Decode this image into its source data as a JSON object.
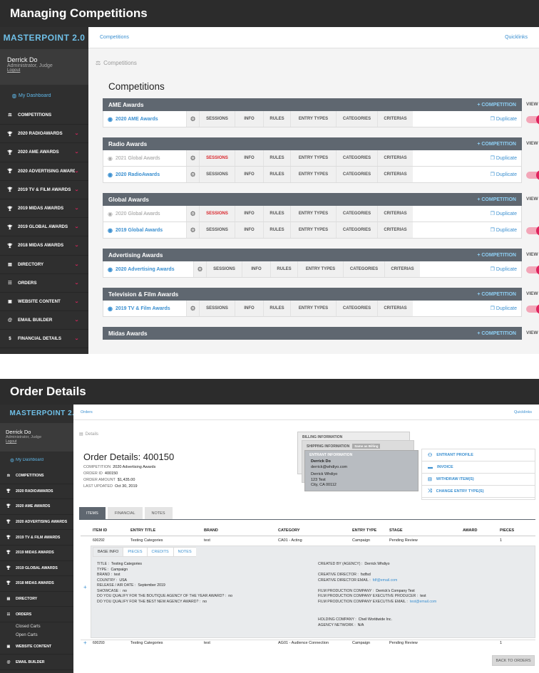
{
  "sections": {
    "competitions_title": "Managing Competitions",
    "order_title": "Order Details"
  },
  "app": {
    "logo": "MASTERPOINT 2.0",
    "user_name": "Derrick Do",
    "user_role": "Administrator, Judge",
    "logout": "Logout",
    "dashboard": "My Dashboard"
  },
  "sidebar1": [
    {
      "label": "Competitions",
      "icon": "scale-icon",
      "chev": false
    },
    {
      "label": "2020 RadioAwards",
      "icon": "trophy-icon",
      "chev": true
    },
    {
      "label": "2020 AME Awards",
      "icon": "trophy-icon",
      "chev": true
    },
    {
      "label": "2020 Advertising Awards",
      "icon": "trophy-icon",
      "chev": true
    },
    {
      "label": "2019 TV & Film Awards",
      "icon": "trophy-icon",
      "chev": true
    },
    {
      "label": "2019 Midas Awards",
      "icon": "trophy-icon",
      "chev": true
    },
    {
      "label": "2019 Global Awards",
      "icon": "trophy-icon",
      "chev": true
    },
    {
      "label": "2018 Midas Awards",
      "icon": "trophy-icon",
      "chev": true
    },
    {
      "label": "Directory",
      "icon": "id-card-icon",
      "chev": true
    },
    {
      "label": "Orders",
      "icon": "list-icon",
      "chev": true
    },
    {
      "label": "Website Content",
      "icon": "image-icon",
      "chev": true
    },
    {
      "label": "Email Builder",
      "icon": "at-icon",
      "chev": true
    },
    {
      "label": "Financial Details",
      "icon": "dollar-icon",
      "chev": true
    }
  ],
  "sidebar2": [
    {
      "label": "Competitions",
      "icon": "scale-icon",
      "chev": false
    },
    {
      "label": "2020 RadioAwards",
      "icon": "trophy-icon",
      "chev": true
    },
    {
      "label": "2020 AME Awards",
      "icon": "trophy-icon",
      "chev": true
    },
    {
      "label": "2020 Advertising Awards",
      "icon": "trophy-icon",
      "chev": true
    },
    {
      "label": "2019 TV & Film Awards",
      "icon": "trophy-icon",
      "chev": true
    },
    {
      "label": "2019 Midas Awards",
      "icon": "trophy-icon",
      "chev": true
    },
    {
      "label": "2019 Global Awards",
      "icon": "trophy-icon",
      "chev": true
    },
    {
      "label": "2018 Midas Awards",
      "icon": "trophy-icon",
      "chev": true
    },
    {
      "label": "Directory",
      "icon": "id-card-icon",
      "chev": true
    },
    {
      "label": "Orders",
      "icon": "list-icon",
      "chev": true
    },
    {
      "label": "Closed Carts",
      "sub": true
    },
    {
      "label": "Open Carts",
      "sub": true
    },
    {
      "label": "Website Content",
      "icon": "image-icon",
      "chev": true
    },
    {
      "label": "Email Builder",
      "icon": "at-icon",
      "chev": true
    }
  ],
  "competitions": {
    "top_link": "Competitions",
    "quicklinks": "Quicklinks",
    "crumb": "Competitions",
    "title": "Competitions",
    "add_label": "+ COMPETITION",
    "view_label": "VIEW",
    "duplicate": "Duplicate",
    "cols": [
      "Sessions",
      "Info",
      "Rules",
      "Entry Types",
      "Categories",
      "Criterias"
    ],
    "groups": [
      {
        "name": "AME Awards",
        "rows": [
          {
            "name": "2020 AME Awards",
            "active": true,
            "sessions_red": false,
            "toggle": true
          }
        ]
      },
      {
        "name": "Radio Awards",
        "rows": [
          {
            "name": "2021 Global Awards",
            "active": false,
            "sessions_red": true,
            "toggle": false
          },
          {
            "name": "2020 RadioAwards",
            "active": true,
            "sessions_red": false,
            "toggle": true
          }
        ]
      },
      {
        "name": "Global Awards",
        "rows": [
          {
            "name": "2020 Global Awards",
            "active": false,
            "sessions_red": true,
            "toggle": false
          },
          {
            "name": "2019 Global Awards",
            "active": true,
            "sessions_red": false,
            "toggle": true
          }
        ]
      },
      {
        "name": "Advertising Awards",
        "rows": [
          {
            "name": "2020 Advertising Awards",
            "active": true,
            "sessions_red": false,
            "toggle": true
          }
        ]
      },
      {
        "name": "Television & Film Awards",
        "rows": [
          {
            "name": "2019 TV & Film Awards",
            "active": true,
            "sessions_red": false,
            "toggle": true
          }
        ]
      },
      {
        "name": "Midas Awards",
        "rows": []
      }
    ]
  },
  "order": {
    "top_link": "Orders",
    "quicklinks": "Quicklinks",
    "crumb": "Details",
    "title": "Order Details: 400150",
    "meta": [
      {
        "k": "Competition",
        "v": "2020 Advertising Awards"
      },
      {
        "k": "Order ID",
        "v": "400150"
      },
      {
        "k": "Order Amount",
        "v": "$1,435.00"
      },
      {
        "k": "Last Updated",
        "v": "Oct 30, 2019"
      }
    ],
    "billing_label": "BILLING INFORMATION",
    "shipping_label": "SHIPPING INFORMATION",
    "same_as_billing": "Same as Billing",
    "entrant_label": "ENTRANT INFORMATION",
    "entrant": [
      "Derrick Do",
      "derrick@whdiyo.com",
      "Derrick Whdiyo",
      "123 Test",
      "City, CA 00112"
    ],
    "actions": [
      {
        "label": "Entrant Profile",
        "icon": "user-icon"
      },
      {
        "label": "Invoice",
        "icon": "invoice-icon"
      },
      {
        "label": "Withdraw Item(s)",
        "icon": "withdraw-icon"
      },
      {
        "label": "Change Entry Type(s)",
        "icon": "shuffle-icon"
      }
    ],
    "tabs": [
      "Items",
      "Financial",
      "Notes"
    ],
    "headers": [
      "ITEM ID",
      "ENTRY TITLE",
      "BRAND",
      "CATEGORY",
      "ENTRY TYPE",
      "STAGE",
      "AWARD",
      "PIECES"
    ],
    "items": [
      {
        "id": "600292",
        "title": "Testing Categories",
        "brand": "test",
        "category": "CA01 - Acting",
        "type": "Campaign",
        "stage": "Pending Review",
        "award": "",
        "pieces": "1"
      },
      {
        "id": "600293",
        "title": "Testing Categories",
        "brand": "test",
        "category": "AG01 - Audience Connection",
        "type": "Campaign",
        "stage": "Pending Review",
        "award": "",
        "pieces": "1"
      }
    ],
    "subtabs": [
      "Base Info",
      "Pieces",
      "Credits",
      "Notes"
    ],
    "left_fields": [
      {
        "k": "Title :",
        "v": "Testing Categories"
      },
      {
        "k": "Type :",
        "v": "Campaign"
      },
      {
        "k": "Brand :",
        "v": "test"
      },
      {
        "k": "Country :",
        "v": "USA"
      },
      {
        "k": "Release / Air Date :",
        "v": "September 2019"
      },
      {
        "k": "Showcase :",
        "v": "no"
      },
      {
        "k": "Do you qualify for the boutique agency of the year award? :",
        "v": "no"
      },
      {
        "k": "Do you qualify for the best new agency award? :",
        "v": "no"
      }
    ],
    "right_fields": [
      {
        "k": "Created By (Agency) :",
        "v": "Derrick Whdiyo",
        "link": false
      },
      {
        "k": "",
        "v": "",
        "link": false
      },
      {
        "k": "Creative Director :",
        "v": "fsdfsd",
        "link": false
      },
      {
        "k": "Creative Director Email :",
        "v": "fdf@email.com",
        "link": true
      },
      {
        "k": "",
        "v": "",
        "link": false
      },
      {
        "k": "Film Production Company :",
        "v": "Derrick's Company Test",
        "link": false
      },
      {
        "k": "Film Production Company Executive Producer :",
        "v": "test",
        "link": false
      },
      {
        "k": "Film Production Company Executive Email :",
        "v": "test@email.com",
        "link": true
      }
    ],
    "right_fields2": [
      {
        "k": "Holding Company :",
        "v": "Cheil Worldwide Inc."
      },
      {
        "k": "Agency Network :",
        "v": "N/A"
      }
    ],
    "back": "BACK TO ORDERS"
  }
}
